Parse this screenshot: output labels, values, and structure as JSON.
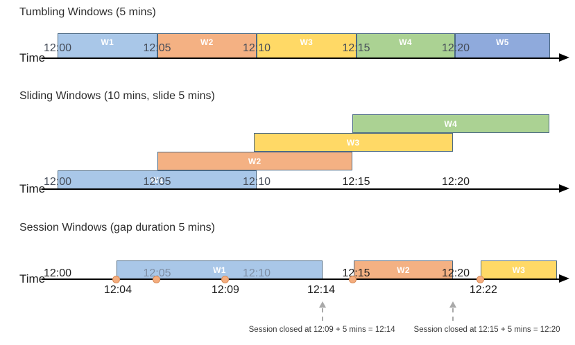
{
  "palette": {
    "blue": "#a9c7e8",
    "orange": "#f4b183",
    "yellow": "#ffd966",
    "green": "#abd293",
    "periwinkle": "#8faadc",
    "box_border": "#4c6a85",
    "event_fill": "#f4ad7e",
    "event_border": "#d98c58",
    "axis": "#000000",
    "tick_default": "#454c58",
    "tick_dark": "#1f1f1f",
    "tick_muted": "#7d8da3",
    "annotation_arrow": "#a9a9a9"
  },
  "sections": {
    "tumbling": {
      "title": "Tumbling Windows (5 mins)",
      "time_label": "Time",
      "ticks": [
        {
          "label": "12:00",
          "min": 0,
          "tone": "default"
        },
        {
          "label": "12:05",
          "min": 5,
          "tone": "default"
        },
        {
          "label": "12:10",
          "min": 10,
          "tone": "default"
        },
        {
          "label": "12:15",
          "min": 15,
          "tone": "default"
        },
        {
          "label": "12:20",
          "min": 20,
          "tone": "default"
        }
      ],
      "windows": [
        {
          "label": "W1",
          "start_min": 0,
          "end_min": 5,
          "color": "blue"
        },
        {
          "label": "W2",
          "start_min": 5,
          "end_min": 10,
          "color": "orange"
        },
        {
          "label": "W3",
          "start_min": 10,
          "end_min": 15,
          "color": "yellow"
        },
        {
          "label": "W4",
          "start_min": 15,
          "end_min": 19.95,
          "color": "green"
        },
        {
          "label": "W5",
          "start_min": 19.95,
          "end_min": 24.75,
          "color": "periwinkle"
        }
      ]
    },
    "sliding": {
      "title": "Sliding Windows (10 mins, slide 5 mins)",
      "time_label": "Time",
      "ticks": [
        {
          "label": "12:00",
          "min": 0,
          "tone": "default"
        },
        {
          "label": "12:05",
          "min": 5,
          "tone": "default"
        },
        {
          "label": "12:10",
          "min": 10,
          "tone": "default"
        },
        {
          "label": "12:15",
          "min": 15,
          "tone": "dark"
        },
        {
          "label": "12:20",
          "min": 20,
          "tone": "dark"
        }
      ],
      "windows": [
        {
          "label": "W1",
          "start_min": 0,
          "end_min": 10,
          "color": "blue",
          "row": 0
        },
        {
          "label": "W2",
          "start_min": 5,
          "end_min": 14.8,
          "color": "orange",
          "row": 1
        },
        {
          "label": "W3",
          "start_min": 9.85,
          "end_min": 19.85,
          "color": "yellow",
          "row": 2
        },
        {
          "label": "W4",
          "start_min": 14.8,
          "end_min": 24.7,
          "color": "green",
          "row": 3
        }
      ]
    },
    "session": {
      "title": "Session Windows (gap duration 5 mins)",
      "time_label": "Time",
      "ticks": [
        {
          "label": "12:00",
          "min": 0,
          "tone": "dark"
        },
        {
          "label": "12:05",
          "min": 5,
          "tone": "muted"
        },
        {
          "label": "12:10",
          "min": 10,
          "tone": "muted"
        },
        {
          "label": "12:15",
          "min": 15,
          "tone": "dark"
        },
        {
          "label": "12:20",
          "min": 20,
          "tone": "dark"
        }
      ],
      "windows": [
        {
          "label": "W1",
          "start_min": 2.96,
          "end_min": 13.31,
          "color": "blue"
        },
        {
          "label": "W2",
          "start_min": 14.88,
          "end_min": 19.86,
          "color": "orange"
        },
        {
          "label": "W3",
          "start_min": 21.25,
          "end_min": 25.09,
          "color": "yellow"
        }
      ],
      "events": [
        {
          "min": 2.96
        },
        {
          "min": 4.95
        },
        {
          "min": 8.43
        },
        {
          "min": 14.81
        },
        {
          "min": 21.25
        }
      ],
      "event_labels": [
        {
          "label": "12:04",
          "min": 3.03
        },
        {
          "label": "12:09",
          "min": 8.43
        },
        {
          "label": "12:14",
          "min": 13.24
        },
        {
          "label": "12:22",
          "min": 21.39
        }
      ],
      "annotations": [
        {
          "text": "Session closed at 12:09 + 5 mins = 12:14",
          "arrow_min": 13.31,
          "text_min": 13.28
        },
        {
          "text": "Session closed at 12:15 + 5 mins = 12:20",
          "arrow_min": 19.86,
          "text_min": 21.57
        }
      ]
    }
  }
}
